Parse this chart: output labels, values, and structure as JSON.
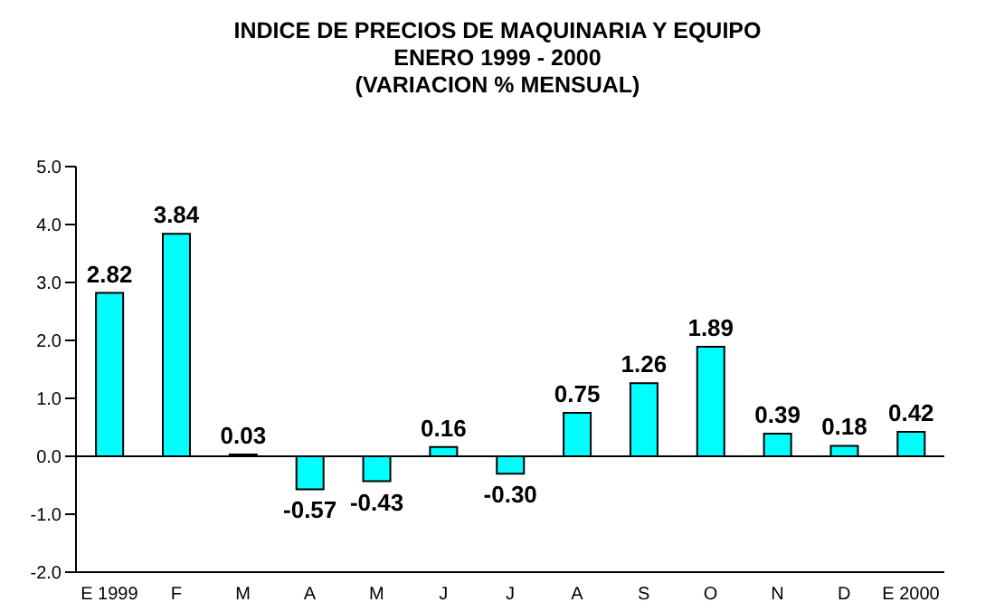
{
  "chart_data": {
    "type": "bar",
    "title": "INDICE DE PRECIOS DE MAQUINARIA Y EQUIPO\nENERO 1999 - 2000\n(VARIACION % MENSUAL)",
    "categories": [
      "E 1999",
      "F",
      "M",
      "A",
      "M",
      "J",
      "J",
      "A",
      "S",
      "O",
      "N",
      "D",
      "E 2000"
    ],
    "values": [
      2.82,
      3.84,
      0.03,
      -0.57,
      -0.43,
      0.16,
      -0.3,
      0.75,
      1.26,
      1.89,
      0.39,
      0.18,
      0.42
    ],
    "value_labels": [
      "2.82",
      "3.84",
      "0.03",
      "-0.57",
      "-0.43",
      "0.16",
      "-0.30",
      "0.75",
      "1.26",
      "1.89",
      "0.39",
      "0.18",
      "0.42"
    ],
    "color": "#00ffff",
    "ylim": [
      -2,
      5
    ],
    "yticks": [
      {
        "value": -2,
        "label": "-2.0"
      },
      {
        "value": -1,
        "label": "-1.0"
      },
      {
        "value": 0,
        "label": "0.0"
      },
      {
        "value": 1,
        "label": "1.0"
      },
      {
        "value": 2,
        "label": "2.0"
      },
      {
        "value": 3,
        "label": "3.0"
      },
      {
        "value": 4,
        "label": "4.0"
      },
      {
        "value": 5,
        "label": "5.0"
      }
    ],
    "ref_lines": [
      {
        "axis": "y",
        "value": 0,
        "color": "#000000"
      }
    ],
    "grid": false,
    "legend": false
  }
}
